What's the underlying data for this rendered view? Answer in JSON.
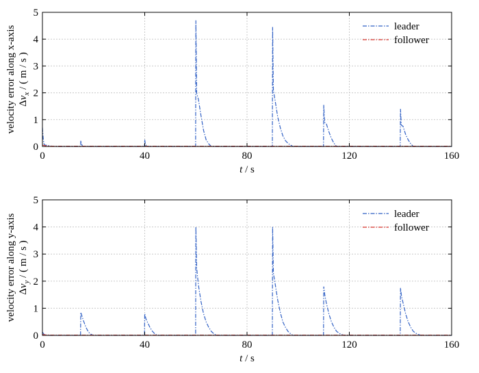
{
  "colors": {
    "leader": "#2f5fc4",
    "follower": "#d9362e",
    "grid": "#c8c8c8"
  },
  "chart_data": [
    {
      "type": "line",
      "xlabel_var": "t",
      "xlabel_unit": "/ s",
      "ylabel_line1": "velocity error along x-axis",
      "ylabel_line2": "Δv",
      "ylabel_sub": "x",
      "ylabel_unit": "/ ( m / s )",
      "xlim": [
        0,
        160
      ],
      "ylim": [
        0,
        5
      ],
      "xticks": [
        "0",
        "40",
        "80",
        "120",
        "160"
      ],
      "yticks": [
        "0",
        "1",
        "2",
        "3",
        "4",
        "5"
      ],
      "grid": true,
      "legend_position": "top-right",
      "series": [
        {
          "name": "leader",
          "style": "dash-dot",
          "x": [
            0,
            0.3,
            0.6,
            1,
            2,
            3,
            5,
            14.9,
            15,
            15.2,
            15.6,
            16,
            39.9,
            40,
            40.2,
            40.6,
            41,
            59.9,
            60,
            60.3,
            61,
            62,
            63,
            64,
            65,
            66,
            89.9,
            90,
            90.3,
            91,
            92,
            93,
            94,
            95,
            96,
            97,
            98,
            109.9,
            110,
            110.3,
            111,
            112,
            113,
            114,
            115,
            139.9,
            140,
            140.3,
            141,
            142,
            143,
            144,
            145,
            160
          ],
          "y": [
            0.7,
            0.3,
            0.1,
            0.05,
            0.04,
            0.02,
            0.0,
            0.0,
            0.22,
            0.12,
            0.02,
            0.0,
            0.0,
            0.25,
            0.12,
            0.02,
            0.0,
            0.0,
            4.7,
            2.0,
            1.75,
            1.15,
            0.6,
            0.25,
            0.1,
            0.0,
            0.0,
            4.45,
            2.1,
            1.7,
            1.1,
            0.7,
            0.4,
            0.22,
            0.12,
            0.05,
            0.0,
            0.0,
            1.55,
            0.9,
            0.85,
            0.55,
            0.3,
            0.12,
            0.0,
            0.0,
            1.4,
            0.8,
            0.75,
            0.45,
            0.25,
            0.1,
            0.0,
            0.0
          ]
        },
        {
          "name": "follower",
          "style": "dash-dot",
          "x": [
            0,
            1,
            3,
            20,
            60,
            61,
            90,
            91,
            160
          ],
          "y": [
            0.05,
            0.03,
            0.01,
            0.01,
            0.01,
            0.01,
            0.01,
            0.01,
            0.01
          ]
        }
      ]
    },
    {
      "type": "line",
      "xlabel_var": "t",
      "xlabel_unit": "/ s",
      "ylabel_line1": "velocity error along y-axis",
      "ylabel_line2": "Δv",
      "ylabel_sub": "y",
      "ylabel_unit": "/ ( m / s )",
      "xlim": [
        0,
        160
      ],
      "ylim": [
        0,
        5
      ],
      "xticks": [
        "0",
        "40",
        "80",
        "120",
        "160"
      ],
      "yticks": [
        "0",
        "1",
        "2",
        "3",
        "4",
        "5"
      ],
      "grid": true,
      "legend_position": "top-right",
      "series": [
        {
          "name": "leader",
          "style": "dash-dot",
          "x": [
            0,
            0.3,
            0.6,
            1,
            2,
            14.9,
            15,
            15.5,
            16,
            17,
            18,
            19,
            20,
            39.9,
            40,
            40.5,
            41,
            42,
            43,
            44,
            45,
            59.9,
            60,
            60.3,
            61,
            62,
            63,
            64,
            65,
            66,
            67,
            68,
            89.9,
            90,
            90.3,
            91,
            92,
            93,
            94,
            95,
            96,
            97,
            98,
            109.9,
            110,
            110.4,
            111,
            112,
            113,
            114,
            115,
            116,
            117,
            118,
            139.9,
            140,
            140.4,
            141,
            142,
            143,
            144,
            145,
            146,
            147,
            148,
            160
          ],
          "y": [
            0.12,
            0.08,
            0.04,
            0.02,
            0.0,
            0.0,
            0.85,
            0.7,
            0.55,
            0.3,
            0.12,
            0.04,
            0.0,
            0.0,
            0.8,
            0.6,
            0.5,
            0.3,
            0.15,
            0.05,
            0.0,
            0.0,
            4.0,
            2.5,
            1.85,
            1.25,
            0.8,
            0.5,
            0.3,
            0.15,
            0.06,
            0.0,
            0.0,
            4.0,
            2.3,
            1.9,
            1.3,
            0.85,
            0.5,
            0.3,
            0.15,
            0.06,
            0.0,
            0.0,
            1.8,
            1.5,
            1.2,
            0.8,
            0.5,
            0.3,
            0.15,
            0.08,
            0.03,
            0.0,
            0.0,
            1.75,
            1.45,
            1.2,
            0.8,
            0.5,
            0.3,
            0.15,
            0.08,
            0.03,
            0.0,
            0.0
          ]
        },
        {
          "name": "follower",
          "style": "dash-dot",
          "x": [
            0,
            1,
            3,
            60,
            61,
            90,
            91,
            160
          ],
          "y": [
            0.03,
            0.02,
            0.01,
            0.01,
            0.01,
            0.01,
            0.01,
            0.01
          ]
        }
      ]
    }
  ]
}
